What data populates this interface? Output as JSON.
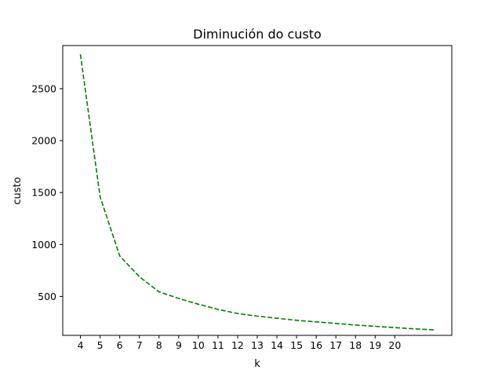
{
  "chart_data": {
    "type": "line",
    "title": "Diminución do custo",
    "xlabel": "k",
    "ylabel": "custo",
    "xlim": [
      3.1,
      22.9
    ],
    "ylim": [
      125,
      2915
    ],
    "xticks": [
      4,
      5,
      6,
      7,
      8,
      9,
      10,
      11,
      12,
      13,
      14,
      15,
      16,
      17,
      18,
      19,
      20
    ],
    "yticks": [
      500,
      1000,
      1500,
      2000,
      2500
    ],
    "grid": false,
    "series": [
      {
        "color": "#008000",
        "line_style": "dashed",
        "x": [
          4,
          5,
          6,
          7,
          8,
          9,
          10,
          11,
          12,
          13,
          14,
          15,
          16,
          17,
          18,
          19,
          20,
          21,
          22
        ],
        "y": [
          2830,
          1460,
          890,
          690,
          545,
          480,
          425,
          375,
          335,
          310,
          290,
          270,
          255,
          240,
          225,
          212,
          200,
          188,
          178
        ]
      }
    ]
  }
}
